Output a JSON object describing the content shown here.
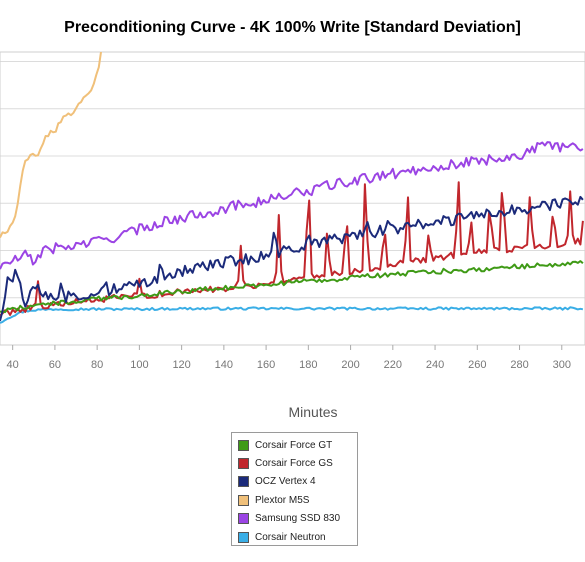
{
  "chart_data": {
    "type": "line",
    "title": "Preconditioning Curve - 4K 100% Write [Standard Deviation]",
    "xlabel": "Minutes",
    "ylabel": "",
    "x_ticks": [
      40,
      60,
      80,
      100,
      120,
      140,
      160,
      180,
      200,
      220,
      240,
      260,
      280,
      300
    ],
    "xlim": [
      34,
      311
    ],
    "ylim": [
      0,
      6.2
    ],
    "grid": "horizontal",
    "legend_position": "bottom-center",
    "series": [
      {
        "name": "Corsair Force GT",
        "color": "#3f9a16",
        "points": [
          [
            34,
            0.72
          ],
          [
            40,
            0.75
          ],
          [
            50,
            0.85
          ],
          [
            60,
            0.88
          ],
          [
            70,
            0.92
          ],
          [
            80,
            0.98
          ],
          [
            90,
            1.0
          ],
          [
            100,
            1.05
          ],
          [
            110,
            1.1
          ],
          [
            120,
            1.13
          ],
          [
            130,
            1.18
          ],
          [
            140,
            1.2
          ],
          [
            150,
            1.25
          ],
          [
            160,
            1.28
          ],
          [
            170,
            1.32
          ],
          [
            180,
            1.36
          ],
          [
            190,
            1.38
          ],
          [
            200,
            1.42
          ],
          [
            210,
            1.46
          ],
          [
            220,
            1.5
          ],
          [
            230,
            1.52
          ],
          [
            240,
            1.55
          ],
          [
            250,
            1.58
          ],
          [
            260,
            1.6
          ],
          [
            270,
            1.63
          ],
          [
            280,
            1.66
          ],
          [
            290,
            1.68
          ],
          [
            300,
            1.72
          ],
          [
            311,
            1.73
          ]
        ]
      },
      {
        "name": "Corsair Force GS",
        "color": "#c1272d",
        "points": [
          [
            34,
            0.65
          ],
          [
            40,
            0.72
          ],
          [
            50,
            0.8
          ],
          [
            60,
            0.85
          ],
          [
            70,
            0.9
          ],
          [
            80,
            0.95
          ],
          [
            90,
            1.0
          ],
          [
            100,
            1.04
          ],
          [
            110,
            1.08
          ],
          [
            120,
            1.12
          ],
          [
            130,
            1.16
          ],
          [
            140,
            1.2
          ],
          [
            150,
            1.25
          ],
          [
            160,
            1.3
          ],
          [
            170,
            1.38
          ],
          [
            180,
            1.45
          ],
          [
            190,
            1.5
          ],
          [
            200,
            1.56
          ],
          [
            210,
            1.62
          ],
          [
            220,
            1.7
          ],
          [
            230,
            1.78
          ],
          [
            240,
            1.84
          ],
          [
            250,
            1.9
          ],
          [
            260,
            1.96
          ],
          [
            270,
            2.0
          ],
          [
            280,
            2.05
          ],
          [
            290,
            2.1
          ],
          [
            300,
            2.15
          ],
          [
            311,
            2.2
          ]
        ],
        "spikes": [
          [
            52,
            1.35
          ],
          [
            100,
            1.4
          ],
          [
            148,
            2.1
          ],
          [
            166,
            2.75
          ],
          [
            180,
            3.7
          ],
          [
            189,
            2.5
          ],
          [
            198,
            2.9
          ],
          [
            207,
            3.7
          ],
          [
            216,
            2.6
          ],
          [
            227,
            3.35
          ],
          [
            237,
            2.4
          ],
          [
            251,
            3.7
          ],
          [
            257,
            2.7
          ],
          [
            266,
            3.15
          ],
          [
            272,
            3.7
          ],
          [
            285,
            3.3
          ],
          [
            296,
            2.95
          ],
          [
            304,
            3.25
          ],
          [
            311,
            3.7
          ]
        ]
      },
      {
        "name": "OCZ Vertex 4",
        "color": "#1b2a7a",
        "points": [
          [
            34,
            0.55
          ],
          [
            38,
            1.4
          ],
          [
            42,
            1.5
          ],
          [
            46,
            0.9
          ],
          [
            50,
            1.2
          ],
          [
            60,
            1.0
          ],
          [
            70,
            1.05
          ],
          [
            80,
            1.1
          ],
          [
            90,
            1.2
          ],
          [
            100,
            1.3
          ],
          [
            110,
            1.45
          ],
          [
            120,
            1.55
          ],
          [
            130,
            1.65
          ],
          [
            140,
            1.75
          ],
          [
            150,
            1.8
          ],
          [
            160,
            1.9
          ],
          [
            170,
            2.0
          ],
          [
            180,
            2.1
          ],
          [
            190,
            2.2
          ],
          [
            200,
            2.3
          ],
          [
            210,
            2.38
          ],
          [
            220,
            2.45
          ],
          [
            230,
            2.52
          ],
          [
            240,
            2.6
          ],
          [
            250,
            2.66
          ],
          [
            260,
            2.72
          ],
          [
            270,
            2.8
          ],
          [
            280,
            2.87
          ],
          [
            290,
            2.94
          ],
          [
            300,
            2.98
          ],
          [
            311,
            3.05
          ]
        ],
        "spikes": [
          [
            63,
            1.35
          ],
          [
            84,
            1.4
          ],
          [
            110,
            1.8
          ],
          [
            164,
            2.55
          ],
          [
            180,
            2.4
          ],
          [
            189,
            2.1
          ],
          [
            208,
            2.6
          ],
          [
            218,
            2.7
          ],
          [
            227,
            2.6
          ],
          [
            235,
            2.4
          ],
          [
            253,
            2.6
          ],
          [
            273,
            2.7
          ],
          [
            282,
            2.6
          ],
          [
            296,
            3.1
          ]
        ]
      },
      {
        "name": "Plextor M5S",
        "color": "#f0c07a",
        "points": [
          [
            34,
            2.3
          ],
          [
            38,
            2.42
          ],
          [
            42,
            2.8
          ],
          [
            44,
            3.5
          ],
          [
            46,
            3.85
          ],
          [
            48,
            4.0
          ],
          [
            52,
            4.05
          ],
          [
            56,
            4.45
          ],
          [
            60,
            4.5
          ],
          [
            62,
            4.75
          ],
          [
            66,
            4.85
          ],
          [
            70,
            5.0
          ],
          [
            74,
            5.2
          ],
          [
            76,
            5.3
          ],
          [
            78,
            5.5
          ],
          [
            80,
            5.7
          ],
          [
            82,
            6.2
          ]
        ]
      },
      {
        "name": "Samsung SSD 830",
        "color": "#9b44e4",
        "points": [
          [
            34,
            1.65
          ],
          [
            40,
            1.78
          ],
          [
            46,
            1.9
          ],
          [
            50,
            1.75
          ],
          [
            54,
            2.0
          ],
          [
            60,
            2.05
          ],
          [
            70,
            2.1
          ],
          [
            80,
            2.2
          ],
          [
            90,
            2.3
          ],
          [
            100,
            2.45
          ],
          [
            110,
            2.6
          ],
          [
            120,
            2.68
          ],
          [
            130,
            2.8
          ],
          [
            140,
            2.88
          ],
          [
            150,
            3.0
          ],
          [
            160,
            3.05
          ],
          [
            170,
            3.18
          ],
          [
            180,
            3.25
          ],
          [
            190,
            3.38
          ],
          [
            200,
            3.45
          ],
          [
            210,
            3.55
          ],
          [
            220,
            3.62
          ],
          [
            230,
            3.7
          ],
          [
            240,
            3.78
          ],
          [
            250,
            3.82
          ],
          [
            260,
            3.9
          ],
          [
            270,
            3.95
          ],
          [
            280,
            4.02
          ],
          [
            290,
            4.2
          ],
          [
            300,
            4.2
          ],
          [
            311,
            4.2
          ]
        ]
      },
      {
        "name": "Corsair Neutron",
        "color": "#3aaee6",
        "points": [
          [
            34,
            0.48
          ],
          [
            38,
            0.58
          ],
          [
            42,
            0.66
          ],
          [
            46,
            0.72
          ],
          [
            50,
            0.74
          ],
          [
            60,
            0.76
          ],
          [
            80,
            0.76
          ],
          [
            100,
            0.76
          ],
          [
            120,
            0.77
          ],
          [
            140,
            0.77
          ],
          [
            160,
            0.77
          ],
          [
            180,
            0.77
          ],
          [
            200,
            0.77
          ],
          [
            220,
            0.77
          ],
          [
            240,
            0.77
          ],
          [
            260,
            0.77
          ],
          [
            280,
            0.77
          ],
          [
            300,
            0.77
          ],
          [
            311,
            0.78
          ]
        ]
      }
    ]
  }
}
